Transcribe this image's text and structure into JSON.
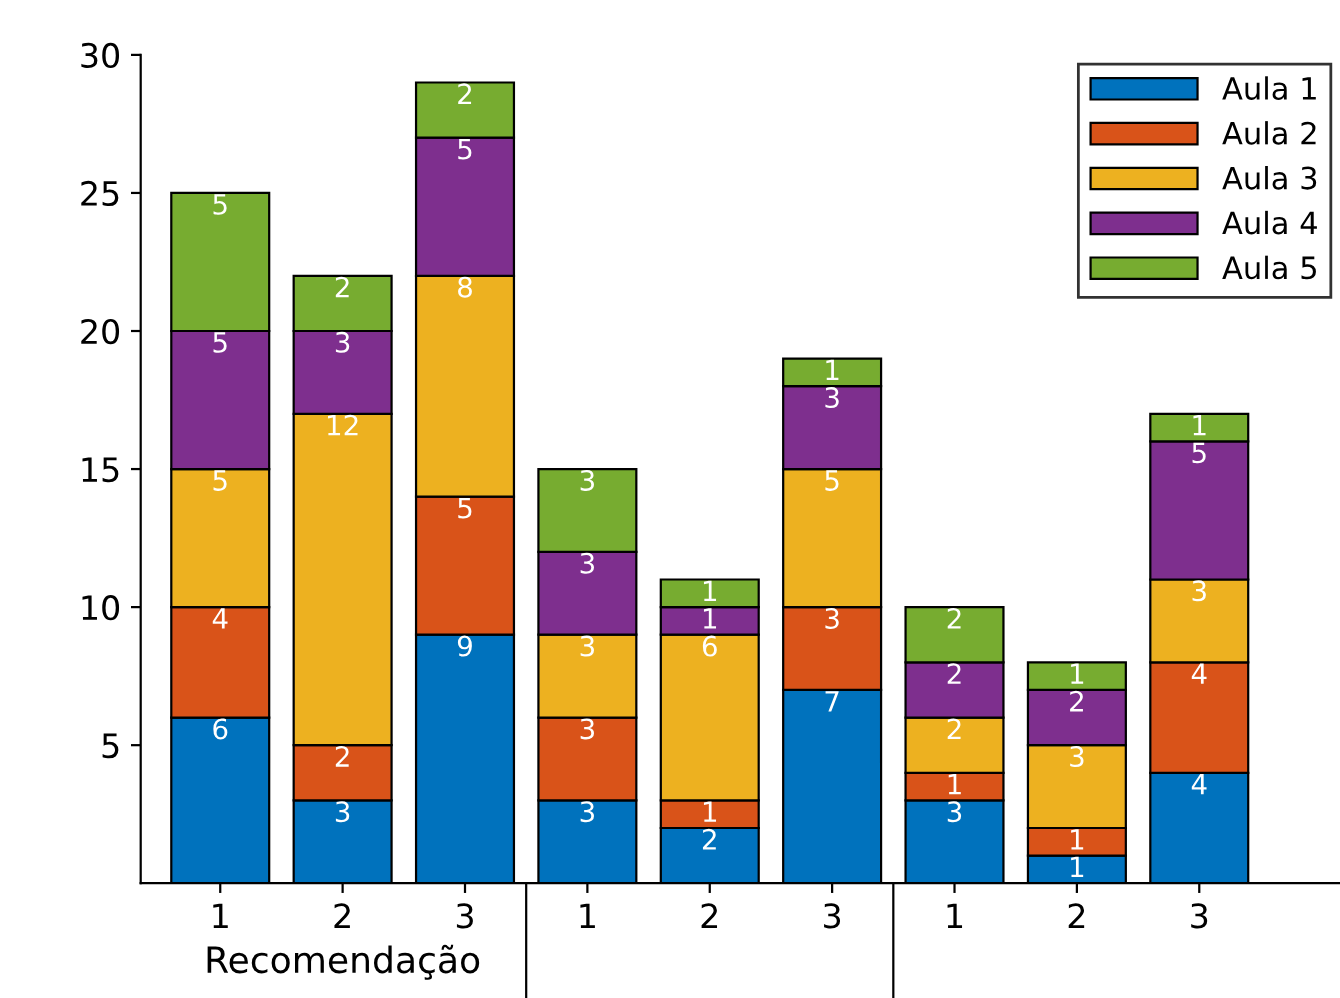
{
  "chart_data": {
    "type": "bar",
    "stacked": true,
    "categories": [
      "1",
      "2",
      "3",
      "1",
      "2",
      "3",
      "1",
      "2",
      "3"
    ],
    "series": [
      {
        "name": "Aula 1",
        "color": "#0072bd",
        "values": [
          6,
          3,
          9,
          3,
          2,
          7,
          3,
          1,
          4
        ]
      },
      {
        "name": "Aula 2",
        "color": "#d95319",
        "values": [
          4,
          2,
          5,
          3,
          1,
          3,
          1,
          1,
          4
        ]
      },
      {
        "name": "Aula 3",
        "color": "#edb120",
        "values": [
          5,
          12,
          8,
          3,
          6,
          5,
          2,
          3,
          3
        ]
      },
      {
        "name": "Aula 4",
        "color": "#7e2f8e",
        "values": [
          5,
          3,
          5,
          3,
          1,
          3,
          2,
          2,
          5
        ]
      },
      {
        "name": "Aula 5",
        "color": "#77ac30",
        "values": [
          5,
          2,
          2,
          3,
          1,
          1,
          2,
          1,
          1
        ]
      }
    ],
    "ylim": [
      0,
      30
    ],
    "yticks": [
      5,
      10,
      15,
      20,
      25,
      30
    ],
    "data_labels": true,
    "legend": "top right",
    "grid": false,
    "annotations": [
      "Recomendação"
    ]
  }
}
